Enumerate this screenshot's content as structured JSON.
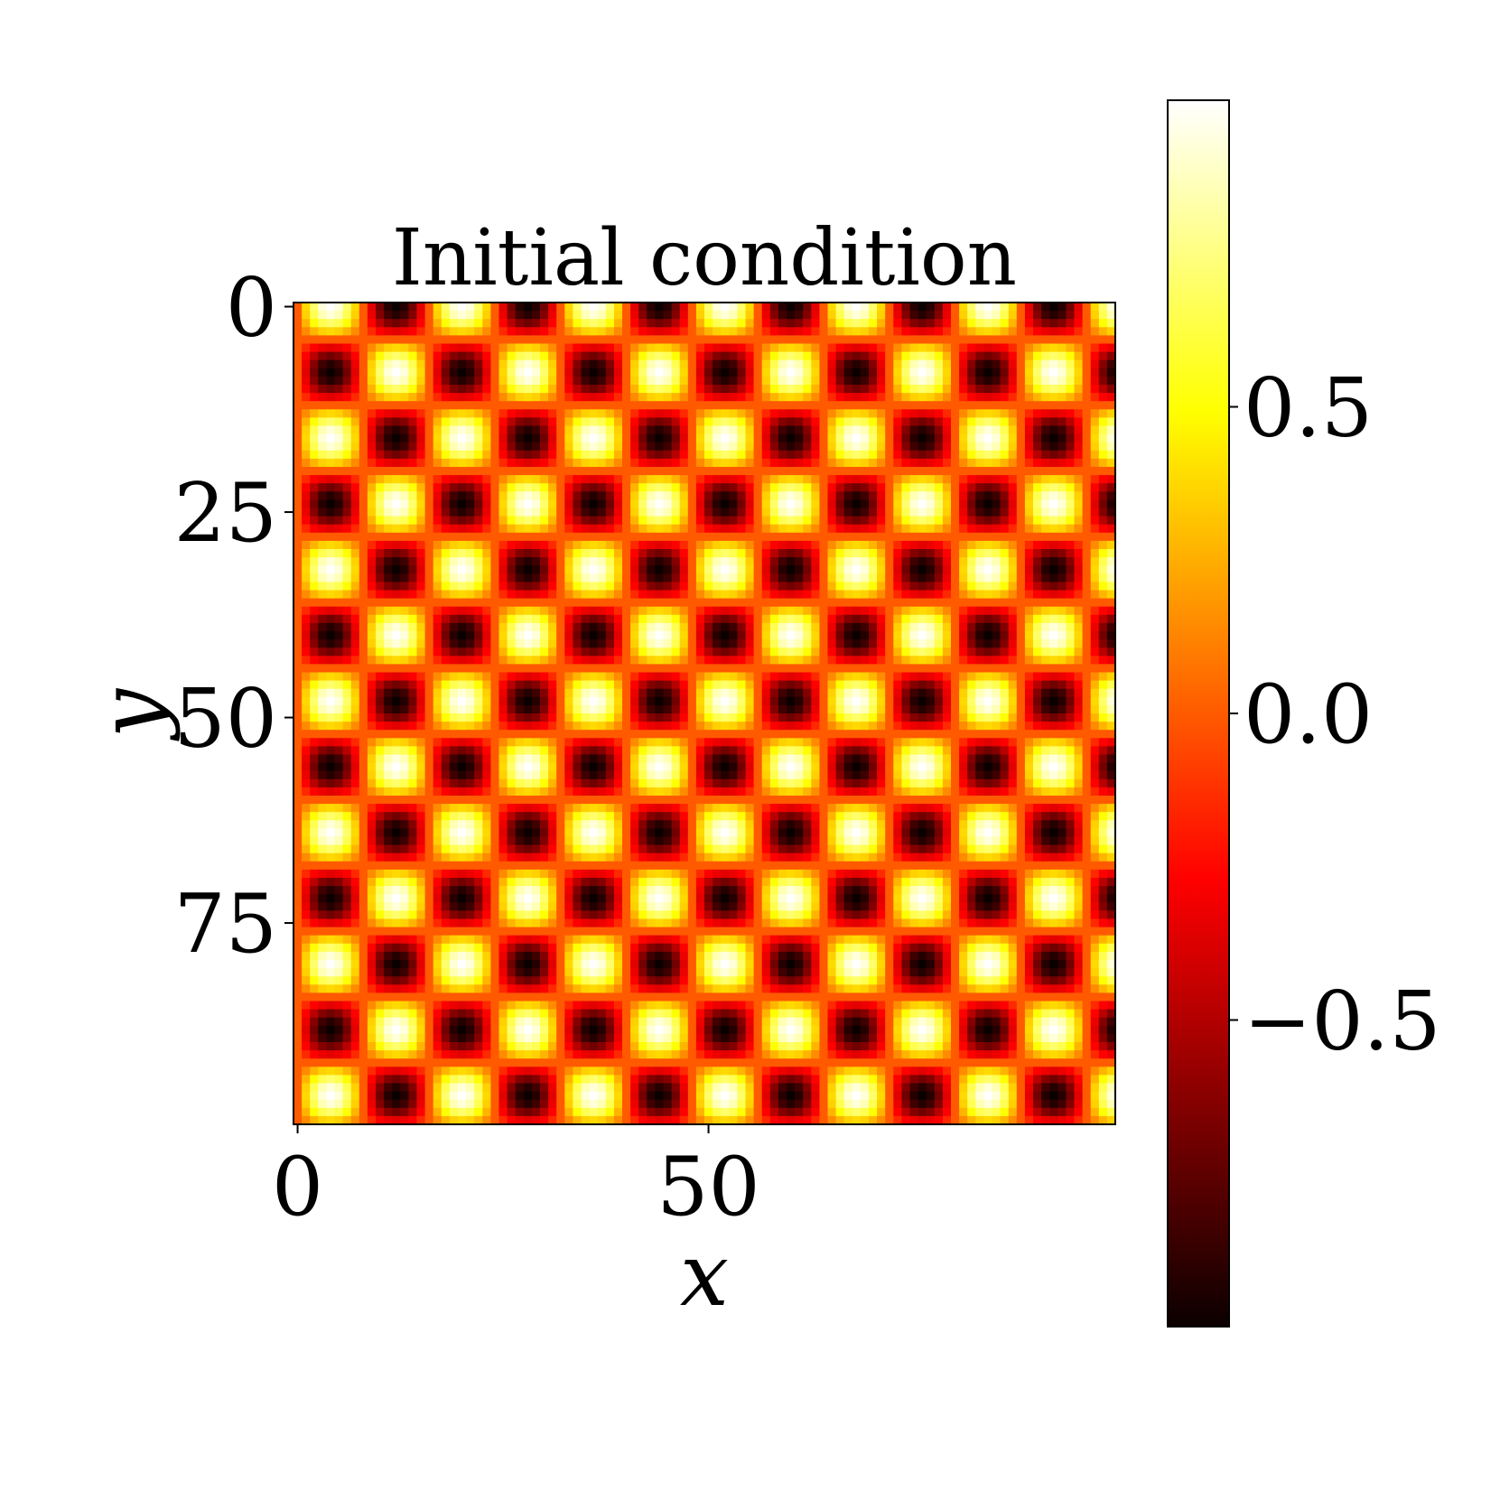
{
  "chart_data": {
    "type": "heatmap",
    "title": "Initial condition",
    "xlabel": "x",
    "ylabel": "y",
    "x_range": [
      0,
      99
    ],
    "y_range": [
      0,
      99
    ],
    "y_inverted": true,
    "grid": false,
    "field": {
      "description_formula": "sin(k*x) * cos(k*y)",
      "kx": 0.3927,
      "ky": 0.3927,
      "nx": 100,
      "ny": 100
    },
    "x_ticks": [
      {
        "value": 0,
        "label": "0"
      },
      {
        "value": 50,
        "label": "50"
      }
    ],
    "y_ticks": [
      {
        "value": 0,
        "label": "0"
      },
      {
        "value": 25,
        "label": "25"
      },
      {
        "value": 50,
        "label": "50"
      },
      {
        "value": 75,
        "label": "75"
      }
    ],
    "colorbar": {
      "colormap": "hot",
      "vmin": -1,
      "vmax": 1,
      "ticks": [
        {
          "value": 0.5,
          "label": "0.5"
        },
        {
          "value": 0.0,
          "label": "0.0"
        },
        {
          "value": -0.5,
          "label": "−0.5"
        }
      ]
    }
  }
}
